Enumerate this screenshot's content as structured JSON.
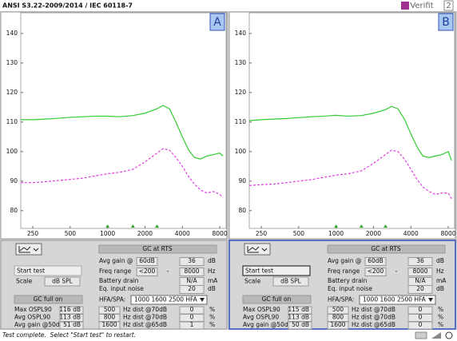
{
  "header": {
    "title": "ANSI S3.22-2009/2014 / IEC 60118-7",
    "logo": "Verifit",
    "logo_number": "2"
  },
  "chart_data": [
    {
      "type": "line",
      "label": "A",
      "log_x": true,
      "x": [
        200,
        250,
        315,
        400,
        500,
        630,
        800,
        1000,
        1250,
        1600,
        2000,
        2500,
        2800,
        3150,
        3550,
        4000,
        4500,
        5000,
        5600,
        6300,
        7100,
        8000,
        8500
      ],
      "xlim": [
        200,
        9000
      ],
      "xticks": [
        250,
        500,
        1000,
        2000,
        4000,
        8000
      ],
      "ylim": [
        74,
        147
      ],
      "yticks": [
        80,
        90,
        100,
        110,
        120,
        130,
        140
      ],
      "series": [
        {
          "color": "#33cc33",
          "dashed": false,
          "values": [
            110.8,
            110.8,
            111,
            111.3,
            111.6,
            111.8,
            112,
            112,
            111.8,
            112.2,
            113,
            114.5,
            115.6,
            114.5,
            110,
            105,
            100.5,
            98,
            97.5,
            98.5,
            99,
            99.5,
            98.5
          ]
        },
        {
          "color": "#e040e0",
          "dashed": true,
          "values": [
            89.5,
            89.5,
            89.8,
            90.2,
            90.6,
            91,
            91.8,
            92.5,
            93,
            94,
            96.5,
            99.5,
            101,
            100.5,
            98,
            95,
            91.5,
            89,
            87,
            86,
            86.5,
            85.5,
            84.5
          ]
        }
      ],
      "hfa_markers": [
        1000,
        1600,
        2500
      ],
      "marker_color": "#33aa33"
    },
    {
      "type": "line",
      "label": "B",
      "log_x": true,
      "x": [
        200,
        250,
        315,
        400,
        500,
        630,
        800,
        1000,
        1250,
        1600,
        2000,
        2500,
        2800,
        3150,
        3550,
        4000,
        4500,
        5000,
        5600,
        6300,
        7100,
        8000,
        8500
      ],
      "xlim": [
        200,
        9000
      ],
      "xticks": [
        250,
        500,
        1000,
        2000,
        4000,
        8000
      ],
      "ylim": [
        74,
        147
      ],
      "yticks": [
        80,
        90,
        100,
        110,
        120,
        130,
        140
      ],
      "series": [
        {
          "color": "#33cc33",
          "dashed": false,
          "values": [
            110.5,
            110.8,
            111,
            111.2,
            111.5,
            111.8,
            112,
            112.3,
            112,
            112.2,
            113,
            114.2,
            115.3,
            114.5,
            111,
            106,
            101.5,
            98.5,
            98,
            98.5,
            99,
            100,
            97
          ]
        },
        {
          "color": "#e040e0",
          "dashed": true,
          "values": [
            88.5,
            88.8,
            89,
            89.5,
            90,
            90.5,
            91.3,
            92,
            92.5,
            93.5,
            96,
            99,
            100.5,
            100,
            97.5,
            94,
            90.5,
            88,
            86.5,
            85.5,
            86,
            86,
            84
          ]
        }
      ],
      "hfa_markers": [
        1000,
        1600,
        2500
      ],
      "marker_color": "#33aa33"
    }
  ],
  "panels": [
    {
      "start_test": "Start test",
      "scale_label": "Scale",
      "scale": "dB SPL",
      "gc_full_on": "GC full on",
      "full_on_rows": [
        [
          "Max OSPL90",
          "116 dB"
        ],
        [
          "Avg OSPL90",
          "113 dB"
        ],
        [
          "Avg gain @50dB",
          "51 dB"
        ]
      ],
      "gc_at_rts": "GC at RTS",
      "avg_gain": [
        "Avg gain @",
        "60dB",
        "36",
        "dB"
      ],
      "freq_range": [
        "Freq range",
        "<200",
        "-",
        "8000",
        "Hz"
      ],
      "battery": [
        "Battery drain",
        "N/A",
        "mA"
      ],
      "noise": [
        "Eq. input noise",
        "20",
        "dB"
      ],
      "hfa_label": "HFA/SPA:",
      "hfa": "1000 1600 2500 HFA",
      "dist_rows": [
        [
          "500",
          "Hz dist @70dB",
          "0",
          "%"
        ],
        [
          "800",
          "Hz dist @70dB",
          "0",
          "%"
        ],
        [
          "1600",
          "Hz dist @65dB",
          "1",
          "%"
        ]
      ]
    },
    {
      "start_test": "Start test",
      "scale_label": "Scale",
      "scale": "dB SPL",
      "gc_full_on": "GC full on",
      "full_on_rows": [
        [
          "Max OSPL90",
          "115 dB"
        ],
        [
          "Avg OSPL90",
          "113 dB"
        ],
        [
          "Avg gain @50dB",
          "50 dB"
        ]
      ],
      "gc_at_rts": "GC at RTS",
      "avg_gain": [
        "Avg gain @",
        "60dB",
        "36",
        "dB"
      ],
      "freq_range": [
        "Freq range",
        "<200",
        "-",
        "8000",
        "Hz"
      ],
      "battery": [
        "Battery drain",
        "N/A",
        "mA"
      ],
      "noise": [
        "Eq. input noise",
        "20",
        "dB"
      ],
      "hfa_label": "HFA/SPA:",
      "hfa": "1000 1600 2500 HFA",
      "dist_rows": [
        [
          "500",
          "Hz dist @70dB",
          "0",
          "%"
        ],
        [
          "800",
          "Hz dist @70dB",
          "0",
          "%"
        ],
        [
          "1600",
          "Hz dist @65dB",
          "0",
          "%"
        ]
      ]
    }
  ],
  "status": "Test complete.  Select \"Start test\" to restart."
}
